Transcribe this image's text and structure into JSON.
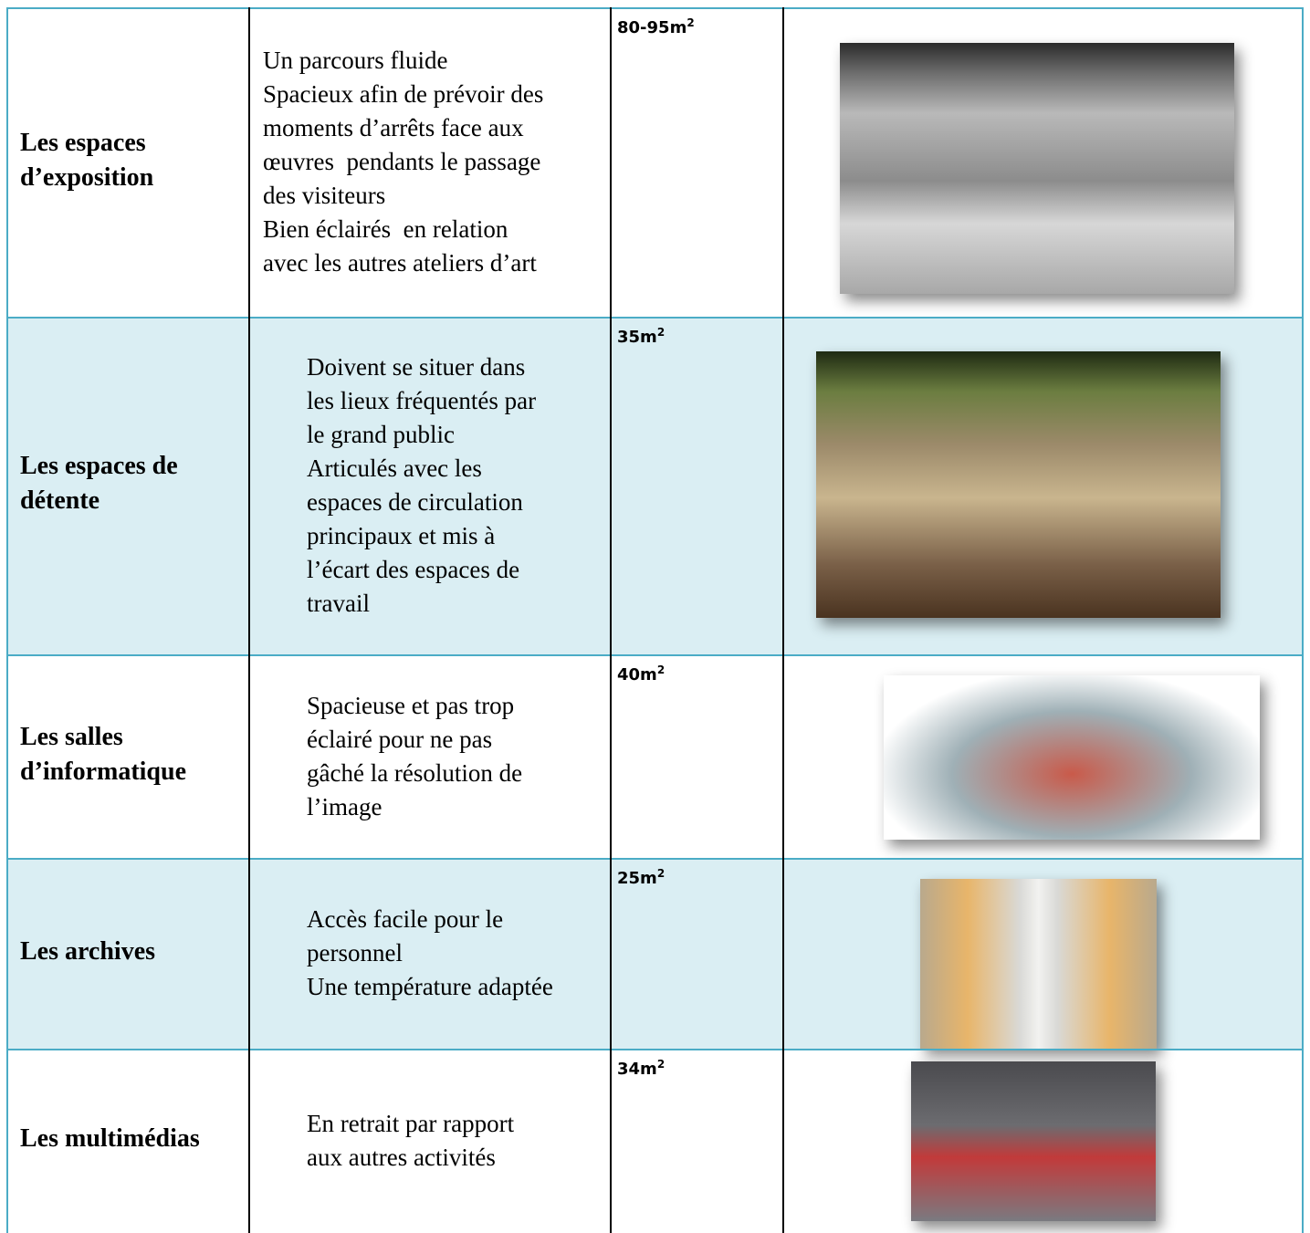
{
  "table": {
    "rows": [
      {
        "name": [
          "Les espaces",
          "d’exposition"
        ],
        "description": [
          "Un parcours fluide",
          "Spacieux afin de prévoir des",
          "moments d’arrêts face aux",
          "œuvres  pendants le passage",
          "des visiteurs",
          "Bien éclairés  en relation",
          "avec les autres ateliers d’art"
        ],
        "area": "80-95m",
        "area_exponent": "2"
      },
      {
        "name": [
          "Les espaces de",
          "détente"
        ],
        "description": [
          "Doivent se situer dans",
          "les lieux fréquentés par",
          "le grand public",
          "Articulés avec les",
          "espaces de circulation",
          "principaux et mis à",
          "l’écart des espaces de",
          "travail"
        ],
        "area": "35m",
        "area_exponent": "2"
      },
      {
        "name": [
          "Les salles",
          "d’informatique"
        ],
        "description": [
          "Spacieuse et pas trop",
          "éclairé pour ne pas",
          "gâché la résolution de",
          "l’image"
        ],
        "area": "40m",
        "area_exponent": "2"
      },
      {
        "name": [
          "Les archives"
        ],
        "description": [
          "Accès facile pour le",
          "personnel",
          "Une température adaptée"
        ],
        "area": "25m",
        "area_exponent": "2"
      },
      {
        "name": [
          "Les multimédias"
        ],
        "description": [
          "En retrait par rapport",
          "aux autres activités"
        ],
        "area": "34m",
        "area_exponent": "2"
      }
    ]
  }
}
